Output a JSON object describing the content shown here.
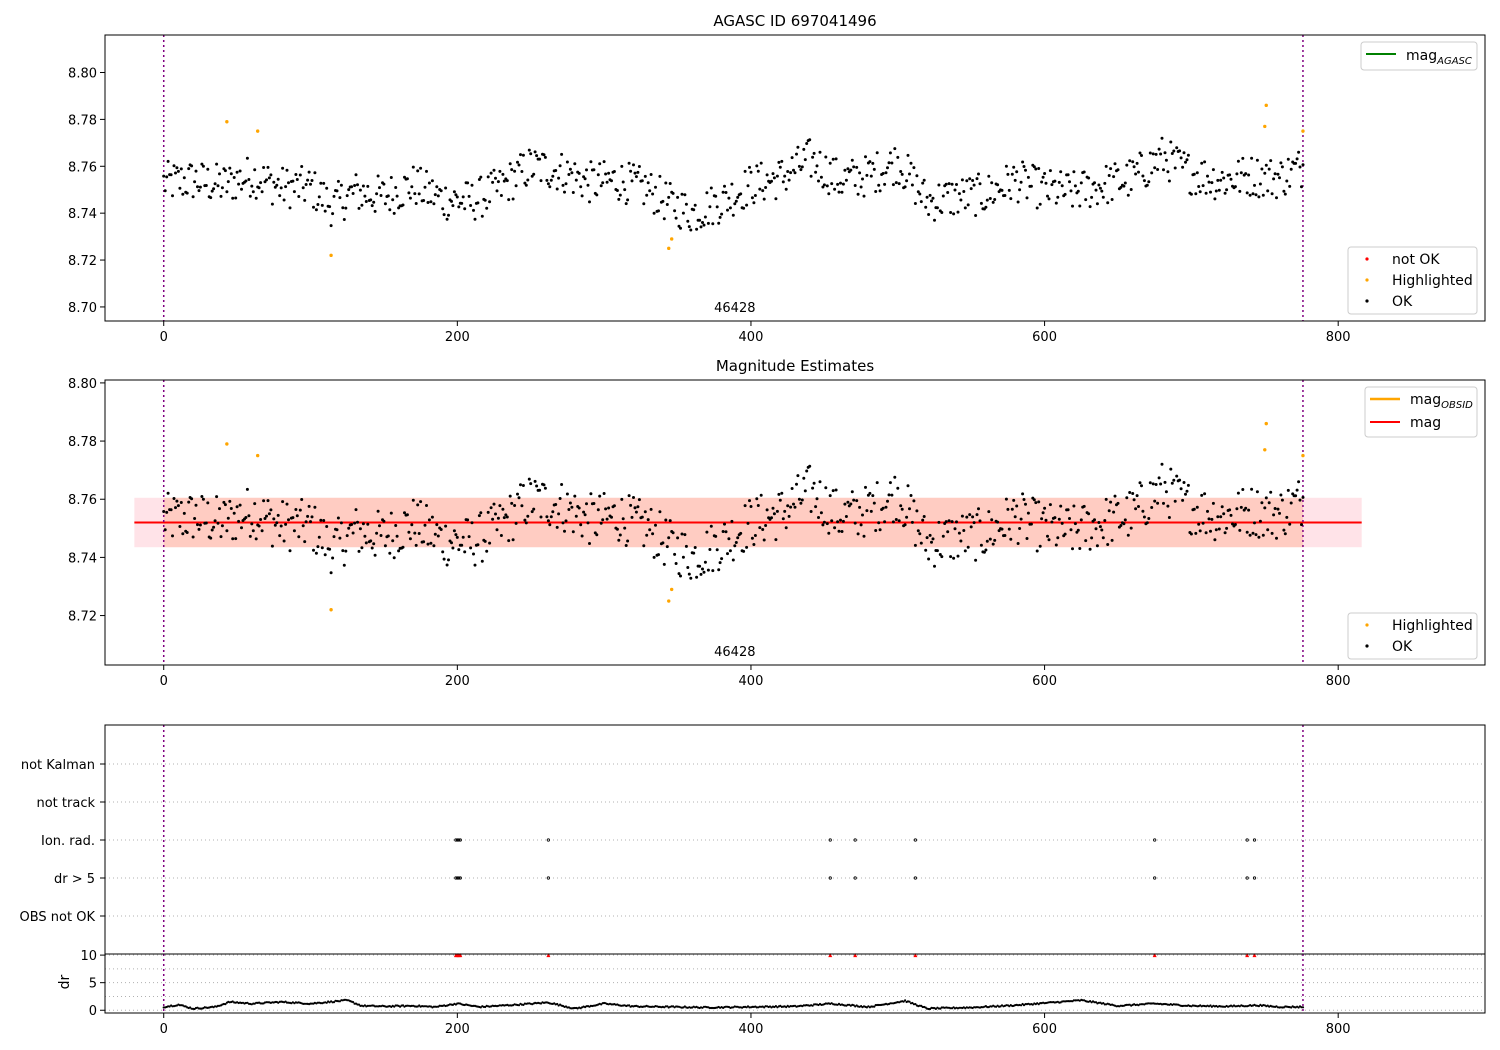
{
  "chart_data": [
    {
      "id": "agasc-panel",
      "type": "scatter",
      "title": "AGASC ID 697041496",
      "xlim": [
        -40,
        900
      ],
      "ylim": [
        8.694,
        8.816
      ],
      "xticks": [
        0,
        200,
        400,
        600,
        800
      ],
      "yticks": [
        8.7,
        8.72,
        8.74,
        8.76,
        8.78,
        8.8
      ],
      "ytick_labels": [
        "8.70",
        "8.72",
        "8.74",
        "8.76",
        "8.78",
        "8.80"
      ],
      "obsid_label": "46428",
      "obsid_label_x": 389,
      "vlines_x": [
        0,
        776
      ],
      "n_points": 777,
      "legend_top": {
        "placement": "top-right",
        "entries": [
          {
            "label": "mag",
            "sub": "AGASC",
            "color": "#008000"
          }
        ]
      },
      "legend_bottom": {
        "placement": "lower-right",
        "entries": [
          {
            "label": "not OK",
            "color": "#ff0000"
          },
          {
            "label": "Highlighted",
            "color": "#ffa500"
          },
          {
            "label": "OK",
            "color": "#000000"
          }
        ]
      },
      "highlighted": [
        [
          43,
          8.779
        ],
        [
          64,
          8.775
        ],
        [
          114,
          8.722
        ],
        [
          344,
          8.725
        ],
        [
          346,
          8.729
        ],
        [
          751,
          8.786
        ],
        [
          750,
          8.777
        ],
        [
          776,
          8.775
        ]
      ],
      "ok_anchor_x": [
        0,
        20,
        40,
        60,
        80,
        100,
        115,
        130,
        150,
        170,
        190,
        210,
        230,
        250,
        270,
        290,
        310,
        330,
        345,
        360,
        380,
        400,
        420,
        440,
        460,
        480,
        500,
        520,
        540,
        560,
        580,
        600,
        620,
        640,
        660,
        680,
        700,
        720,
        740,
        760,
        776
      ],
      "ok_anchor_y": [
        8.753,
        8.754,
        8.752,
        8.756,
        8.751,
        8.751,
        8.743,
        8.749,
        8.747,
        8.752,
        8.746,
        8.745,
        8.751,
        8.76,
        8.758,
        8.753,
        8.754,
        8.75,
        8.744,
        8.74,
        8.745,
        8.752,
        8.755,
        8.763,
        8.754,
        8.756,
        8.762,
        8.745,
        8.747,
        8.748,
        8.754,
        8.75,
        8.749,
        8.752,
        8.755,
        8.764,
        8.757,
        8.754,
        8.756,
        8.755,
        8.76
      ]
    },
    {
      "id": "mag-estimates-panel",
      "type": "scatter",
      "title": "Magnitude Estimates",
      "xlim": [
        -40,
        900
      ],
      "ylim": [
        8.703,
        8.801
      ],
      "xticks": [
        0,
        200,
        400,
        600,
        800
      ],
      "yticks": [
        8.72,
        8.74,
        8.76,
        8.78,
        8.8
      ],
      "ytick_labels": [
        "8.72",
        "8.74",
        "8.76",
        "8.78",
        "8.80"
      ],
      "obsid_label": "46428",
      "obsid_label_x": 389,
      "vlines_x": [
        0,
        776
      ],
      "mag_line": {
        "y": 8.752,
        "x": [
          -20,
          816
        ]
      },
      "band_outer": {
        "y": [
          8.7435,
          8.7605
        ],
        "x": [
          -20,
          816
        ]
      },
      "band_obsid": {
        "y": [
          8.7435,
          8.7605
        ],
        "x": [
          0,
          776
        ]
      },
      "legend_top": {
        "placement": "top-right",
        "entries": [
          {
            "label": "mag",
            "sub": "OBSID",
            "color": "#ffa500"
          },
          {
            "label": "mag",
            "sub": "",
            "color": "#ff0000"
          }
        ]
      },
      "legend_bottom": {
        "placement": "lower-right",
        "entries": [
          {
            "label": "Highlighted",
            "color": "#ffa500"
          },
          {
            "label": "OK",
            "color": "#000000"
          }
        ]
      }
    },
    {
      "id": "flags-panel",
      "type": "scatter",
      "xlim": [
        -40,
        900
      ],
      "vlines_x": [
        0,
        776
      ],
      "categories": [
        "not Kalman",
        "not track",
        "Ion. rad.",
        "dr > 5",
        "OBS not OK"
      ],
      "flag_x": [
        199,
        200,
        201,
        202,
        262,
        454,
        471,
        512,
        675,
        738,
        743
      ],
      "flagged_rows": [
        "Ion. rad.",
        "dr > 5"
      ]
    },
    {
      "id": "dr-panel",
      "type": "scatter",
      "ylabel": "dr",
      "xlim": [
        -40,
        900
      ],
      "ylim": [
        -0.5,
        10.2
      ],
      "xticks": [
        0,
        200,
        400,
        600,
        800
      ],
      "yticks": [
        0,
        5,
        10
      ],
      "vlines_x": [
        0,
        776
      ],
      "capped_value": 10,
      "capped_x": [
        199,
        200,
        201,
        202,
        262,
        454,
        471,
        512,
        675,
        738,
        743
      ],
      "dr_anchor_x": [
        0,
        10,
        20,
        35,
        45,
        60,
        80,
        100,
        125,
        135,
        150,
        170,
        185,
        200,
        215,
        240,
        262,
        280,
        300,
        320,
        345,
        370,
        400,
        430,
        455,
        480,
        505,
        520,
        550,
        580,
        600,
        625,
        650,
        675,
        700,
        725,
        745,
        760,
        776
      ],
      "dr_anchor_y": [
        0.6,
        1.0,
        0.3,
        0.6,
        1.5,
        1.2,
        1.5,
        1.2,
        1.8,
        0.8,
        0.7,
        0.8,
        0.6,
        1.2,
        0.6,
        1.0,
        1.4,
        0.3,
        1.2,
        0.7,
        0.6,
        0.5,
        0.6,
        0.7,
        1.2,
        0.6,
        1.7,
        0.3,
        0.5,
        0.9,
        1.3,
        1.8,
        0.8,
        1.2,
        0.8,
        0.7,
        0.9,
        0.6,
        0.6
      ]
    }
  ]
}
